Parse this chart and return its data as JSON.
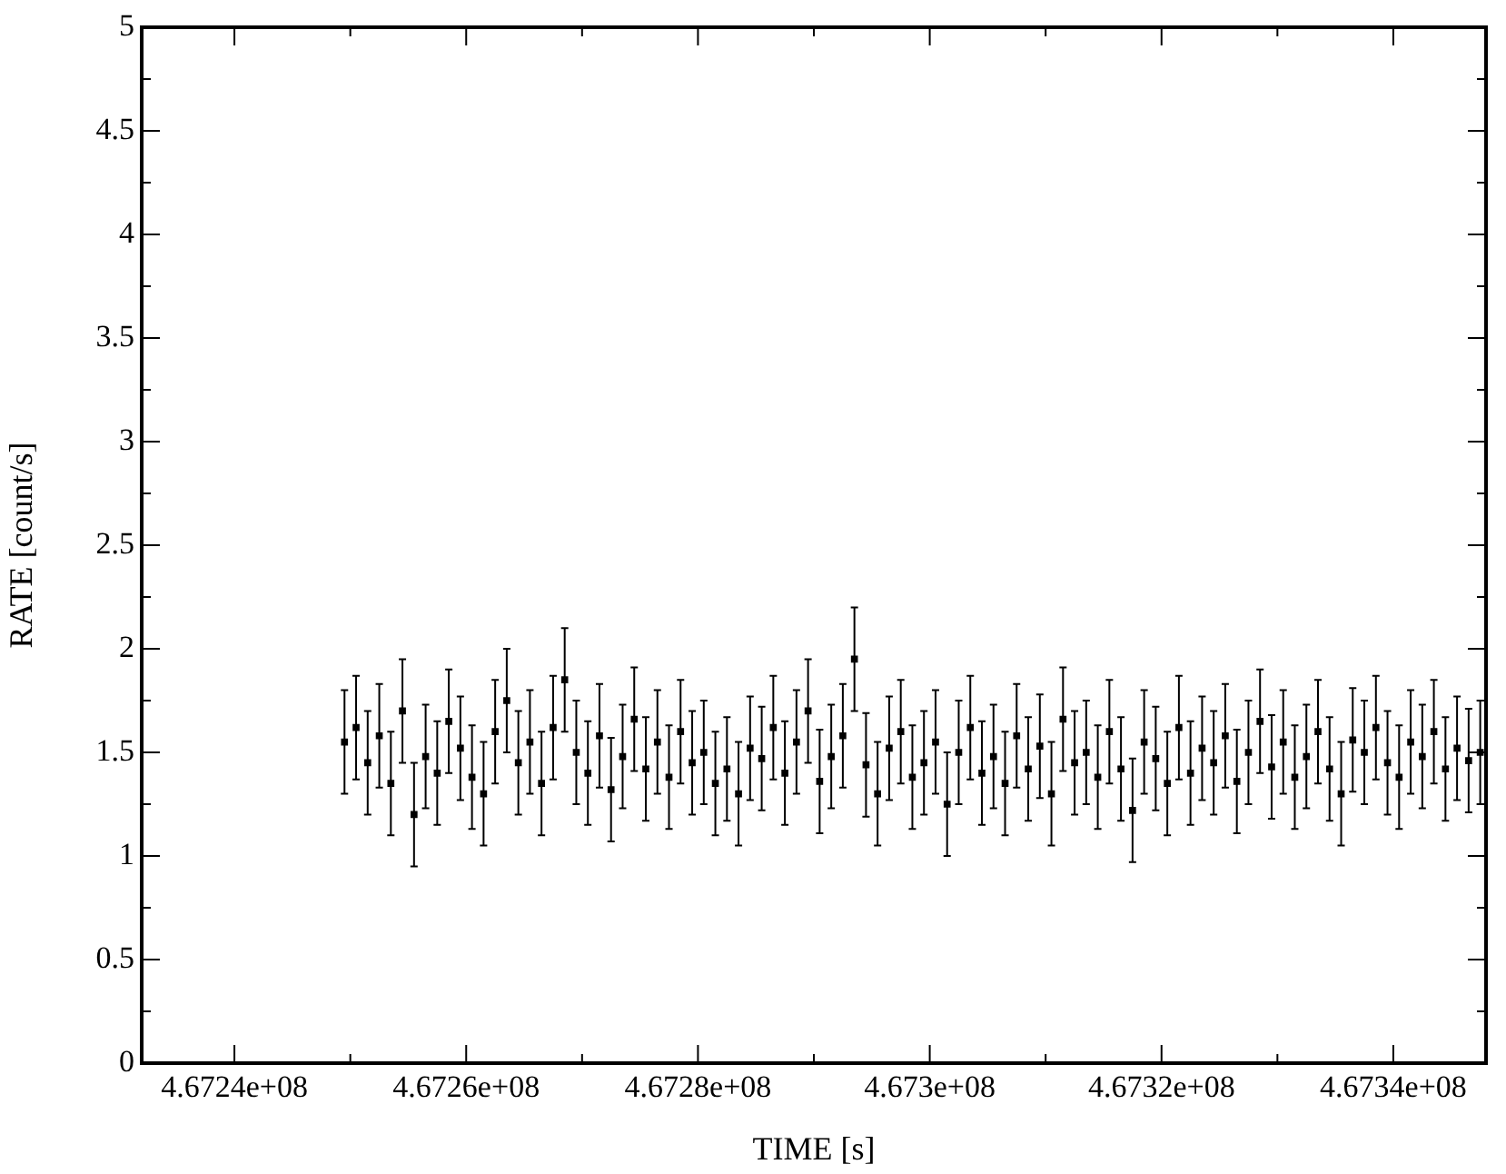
{
  "chart_data": {
    "type": "scatter",
    "xlabel": "TIME [s]",
    "ylabel": "RATE [count/s]",
    "marker": "square",
    "xlim": [
      467232000,
      467348000
    ],
    "xticks": [
      {
        "value": 467240000,
        "label": "4.6724e+08"
      },
      {
        "value": 467250000,
        "label": null
      },
      {
        "value": 467260000,
        "label": "4.6726e+08"
      },
      {
        "value": 467270000,
        "label": null
      },
      {
        "value": 467280000,
        "label": "4.6728e+08"
      },
      {
        "value": 467290000,
        "label": null
      },
      {
        "value": 467300000,
        "label": "4.673e+08"
      },
      {
        "value": 467310000,
        "label": null
      },
      {
        "value": 467320000,
        "label": "4.6732e+08"
      },
      {
        "value": 467330000,
        "label": null
      },
      {
        "value": 467340000,
        "label": "4.6734e+08"
      }
    ],
    "ylim": [
      0,
      5
    ],
    "yticks": [
      0,
      {
        "value": 0.25,
        "label": null
      },
      0.5,
      {
        "value": 0.75,
        "label": null
      },
      1,
      {
        "value": 1.25,
        "label": null
      },
      1.5,
      {
        "value": 1.75,
        "label": null
      },
      2,
      {
        "value": 2.25,
        "label": null
      },
      2.5,
      {
        "value": 2.75,
        "label": null
      },
      3,
      {
        "value": 3.25,
        "label": null
      },
      3.5,
      {
        "value": 3.75,
        "label": null
      },
      4,
      {
        "value": 4.25,
        "label": null
      },
      4.5,
      {
        "value": 4.75,
        "label": null
      },
      5
    ],
    "x": [
      467249500,
      467250500,
      467251500,
      467252500,
      467253500,
      467254500,
      467255500,
      467256500,
      467257500,
      467258500,
      467259500,
      467260500,
      467261500,
      467262500,
      467263500,
      467264500,
      467265500,
      467266500,
      467267500,
      467268500,
      467269500,
      467270500,
      467271500,
      467272500,
      467273500,
      467274500,
      467275500,
      467276500,
      467277500,
      467278500,
      467279500,
      467280500,
      467281500,
      467282500,
      467283500,
      467284500,
      467285500,
      467286500,
      467287500,
      467288500,
      467289500,
      467290500,
      467291500,
      467292500,
      467293500,
      467294500,
      467295500,
      467296500,
      467297500,
      467298500,
      467299500,
      467300500,
      467301500,
      467302500,
      467303500,
      467304500,
      467305500,
      467306500,
      467307500,
      467308500,
      467309500,
      467310500,
      467311500,
      467312500,
      467313500,
      467314500,
      467315500,
      467316500,
      467317500,
      467318500,
      467319500,
      467320500,
      467321500,
      467322500,
      467323500,
      467324500,
      467325500,
      467326500,
      467327500,
      467328500,
      467329500,
      467330500,
      467331500,
      467332500,
      467333500,
      467334500,
      467335500,
      467336500,
      467337500,
      467338500,
      467339500,
      467340500,
      467341500,
      467342500,
      467343500,
      467344500,
      467345500,
      467346500,
      467347500
    ],
    "series": [
      {
        "color": "#000000",
        "values": [
          1.55,
          1.62,
          1.45,
          1.58,
          1.35,
          1.7,
          1.2,
          1.48,
          1.4,
          1.65,
          1.52,
          1.38,
          1.3,
          1.6,
          1.75,
          1.45,
          1.55,
          1.35,
          1.62,
          1.85,
          1.5,
          1.4,
          1.58,
          1.32,
          1.48,
          1.66,
          1.42,
          1.55,
          1.38,
          1.6,
          1.45,
          1.5,
          1.35,
          1.42,
          1.3,
          1.52,
          1.47,
          1.62,
          1.4,
          1.55,
          1.7,
          1.36,
          1.48,
          1.58,
          1.95,
          1.44,
          1.3,
          1.52,
          1.6,
          1.38,
          1.45,
          1.55,
          1.25,
          1.5,
          1.62,
          1.4,
          1.48,
          1.35,
          1.58,
          1.42,
          1.53,
          1.3,
          1.66,
          1.45,
          1.5,
          1.38,
          1.6,
          1.42,
          1.22,
          1.55,
          1.47,
          1.35,
          1.62,
          1.4,
          1.52,
          1.45,
          1.58,
          1.36,
          1.5,
          1.65,
          1.43,
          1.55,
          1.38,
          1.48,
          1.6,
          1.42,
          1.3,
          1.56,
          1.5,
          1.62,
          1.45,
          1.38,
          1.55,
          1.48,
          1.6,
          1.42,
          1.52,
          1.46,
          1.5
        ],
        "errors": [
          0.25,
          0.25,
          0.25,
          0.25,
          0.25,
          0.25,
          0.25,
          0.25,
          0.25,
          0.25,
          0.25,
          0.25,
          0.25,
          0.25,
          0.25,
          0.25,
          0.25,
          0.25,
          0.25,
          0.25,
          0.25,
          0.25,
          0.25,
          0.25,
          0.25,
          0.25,
          0.25,
          0.25,
          0.25,
          0.25,
          0.25,
          0.25,
          0.25,
          0.25,
          0.25,
          0.25,
          0.25,
          0.25,
          0.25,
          0.25,
          0.25,
          0.25,
          0.25,
          0.25,
          0.25,
          0.25,
          0.25,
          0.25,
          0.25,
          0.25,
          0.25,
          0.25,
          0.25,
          0.25,
          0.25,
          0.25,
          0.25,
          0.25,
          0.25,
          0.25,
          0.25,
          0.25,
          0.25,
          0.25,
          0.25,
          0.25,
          0.25,
          0.25,
          0.25,
          0.25,
          0.25,
          0.25,
          0.25,
          0.25,
          0.25,
          0.25,
          0.25,
          0.25,
          0.25,
          0.25,
          0.25,
          0.25,
          0.25,
          0.25,
          0.25,
          0.25,
          0.25,
          0.25,
          0.25,
          0.25,
          0.25,
          0.25,
          0.25,
          0.25,
          0.25,
          0.25,
          0.25,
          0.25,
          0.25
        ]
      }
    ]
  }
}
